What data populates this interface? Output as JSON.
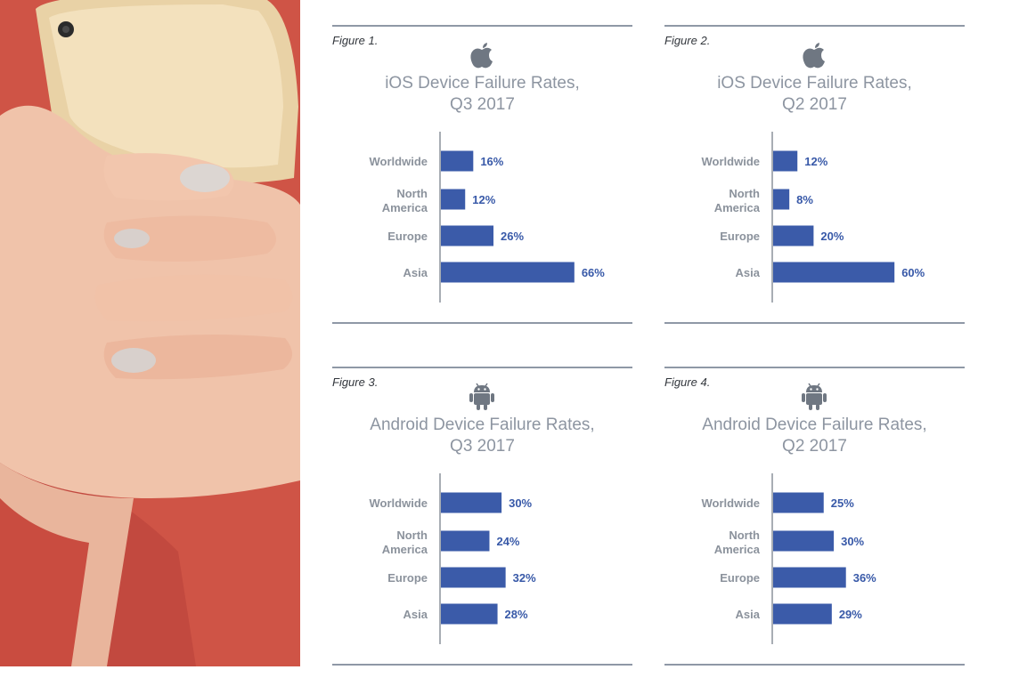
{
  "colors": {
    "bar": "#3b5ba9",
    "value_text": "#3859a8",
    "category_text": "#8b929c",
    "title_text": "#8d95a1",
    "rules": "#8f98a6",
    "photo_bg": "#d05646"
  },
  "figures": [
    {
      "label": "Figure 1.",
      "icon": "apple-logo-icon",
      "title_line1": "iOS Device Failure Rates,",
      "title_line2": "Q3 2017"
    },
    {
      "label": "Figure 2.",
      "icon": "apple-logo-icon",
      "title_line1": "iOS Device Failure Rates,",
      "title_line2": "Q2 2017"
    },
    {
      "label": "Figure 3.",
      "icon": "android-logo-icon",
      "title_line1": "Android Device Failure Rates,",
      "title_line2": "Q3 2017"
    },
    {
      "label": "Figure 4.",
      "icon": "android-logo-icon",
      "title_line1": "Android Device Failure Rates,",
      "title_line2": "Q2 2017"
    }
  ],
  "chart_data": [
    {
      "type": "bar",
      "orientation": "horizontal",
      "title": "iOS Device Failure Rates, Q3 2017",
      "categories": [
        "Worldwide",
        "North America",
        "Europe",
        "Asia"
      ],
      "values": [
        16,
        12,
        26,
        66
      ],
      "value_labels": [
        "16%",
        "12%",
        "26%",
        "66%"
      ],
      "xlim": [
        0,
        100
      ],
      "grid": false,
      "legend": "none"
    },
    {
      "type": "bar",
      "orientation": "horizontal",
      "title": "iOS Device Failure Rates, Q2 2017",
      "categories": [
        "Worldwide",
        "North America",
        "Europe",
        "Asia"
      ],
      "values": [
        12,
        8,
        20,
        60
      ],
      "value_labels": [
        "12%",
        "8%",
        "20%",
        "60%"
      ],
      "xlim": [
        0,
        100
      ],
      "grid": false,
      "legend": "none"
    },
    {
      "type": "bar",
      "orientation": "horizontal",
      "title": "Android Device Failure Rates, Q3 2017",
      "categories": [
        "Worldwide",
        "North America",
        "Europe",
        "Asia"
      ],
      "values": [
        30,
        24,
        32,
        28
      ],
      "value_labels": [
        "30%",
        "24%",
        "32%",
        "28%"
      ],
      "xlim": [
        0,
        100
      ],
      "grid": false,
      "legend": "none"
    },
    {
      "type": "bar",
      "orientation": "horizontal",
      "title": "Android Device Failure Rates, Q2 2017",
      "categories": [
        "Worldwide",
        "North America",
        "Europe",
        "Asia"
      ],
      "values": [
        25,
        30,
        36,
        29
      ],
      "value_labels": [
        "25%",
        "30%",
        "36%",
        "29%"
      ],
      "xlim": [
        0,
        100
      ],
      "grid": false,
      "legend": "none"
    }
  ]
}
